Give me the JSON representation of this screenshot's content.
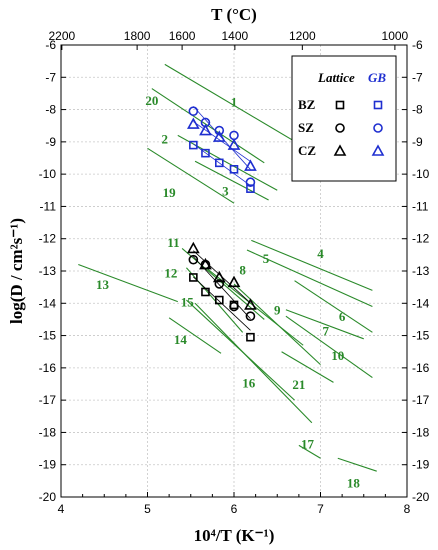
{
  "chart_data": {
    "type": "scatter",
    "xlabel": "10⁴/T (K⁻¹)",
    "ylabel": "log(D / cm²s⁻¹)",
    "top_axis_label": "T (°C)",
    "xlim": [
      4,
      8
    ],
    "ylim": [
      -20,
      -6
    ],
    "x_ticks": [
      "4",
      "5",
      "6",
      "7",
      "8"
    ],
    "y_ticks": [
      "-6",
      "-7",
      "-8",
      "-9",
      "-10",
      "-11",
      "-12",
      "-13",
      "-14",
      "-15",
      "-16",
      "-17",
      "-18",
      "-19",
      "-20"
    ],
    "top_ticks": [
      {
        "label": "2200",
        "x": 4.01
      },
      {
        "label": "1800",
        "x": 4.88
      },
      {
        "label": "1600",
        "x": 5.4
      },
      {
        "label": "1400",
        "x": 6.01
      },
      {
        "label": "1200",
        "x": 6.79
      },
      {
        "label": "1000",
        "x": 7.86
      }
    ],
    "grid": true,
    "legend": {
      "position": "top-right",
      "titles": [
        "Lattice",
        "GB"
      ],
      "rows": [
        {
          "label": "BZ",
          "marker": "square"
        },
        {
          "label": "SZ",
          "marker": "circle"
        },
        {
          "label": "CZ",
          "marker": "triangle"
        }
      ]
    },
    "colors": {
      "lattice": "#000000",
      "gb": "#1f2fd0",
      "literature": "#2a8a2a"
    },
    "series": [
      {
        "name": "BZ Lattice",
        "group": "lattice",
        "marker": "square",
        "x": [
          5.53,
          5.67,
          5.83,
          6.0,
          6.19
        ],
        "y": [
          -13.2,
          -13.65,
          -13.9,
          -14.05,
          -15.05
        ]
      },
      {
        "name": "SZ Lattice",
        "group": "lattice",
        "marker": "circle",
        "x": [
          5.53,
          5.67,
          5.83,
          6.0,
          6.19
        ],
        "y": [
          -12.65,
          -12.8,
          -13.4,
          -14.1,
          -14.4
        ]
      },
      {
        "name": "CZ Lattice",
        "group": "lattice",
        "marker": "triangle",
        "x": [
          5.53,
          5.67,
          5.83,
          6.0,
          6.19
        ],
        "y": [
          -12.3,
          -12.8,
          -13.2,
          -13.35,
          -14.05
        ]
      },
      {
        "name": "BZ GB",
        "group": "gb",
        "marker": "square",
        "x": [
          5.53,
          5.67,
          5.83,
          6.0,
          6.19
        ],
        "y": [
          -9.1,
          -9.35,
          -9.65,
          -9.85,
          -10.45
        ]
      },
      {
        "name": "SZ GB",
        "group": "gb",
        "marker": "circle",
        "x": [
          5.53,
          5.67,
          5.83,
          6.0,
          6.19
        ],
        "y": [
          -8.05,
          -8.4,
          -8.65,
          -8.8,
          -10.25
        ]
      },
      {
        "name": "CZ GB",
        "group": "gb",
        "marker": "triangle",
        "x": [
          5.53,
          5.67,
          5.83,
          6.0,
          6.19
        ],
        "y": [
          -8.45,
          -8.65,
          -8.85,
          -9.1,
          -9.75
        ]
      }
    ],
    "literature_lines": [
      {
        "label": "1",
        "x": [
          5.2,
          6.9
        ],
        "y": [
          -6.6,
          -9.3
        ]
      },
      {
        "label": "2",
        "x": [
          5.35,
          6.5
        ],
        "y": [
          -8.8,
          -10.5
        ]
      },
      {
        "label": "3",
        "x": [
          5.55,
          6.4
        ],
        "y": [
          -9.6,
          -10.8
        ]
      },
      {
        "label": "4",
        "x": [
          6.2,
          7.6
        ],
        "y": [
          -12.05,
          -13.6
        ]
      },
      {
        "label": "5",
        "x": [
          6.15,
          7.6
        ],
        "y": [
          -12.35,
          -14.1
        ]
      },
      {
        "label": "6",
        "x": [
          6.7,
          7.6
        ],
        "y": [
          -13.3,
          -14.9
        ]
      },
      {
        "label": "7",
        "x": [
          6.6,
          7.5
        ],
        "y": [
          -14.2,
          -15.1
        ]
      },
      {
        "label": "8",
        "x": [
          5.7,
          6.8
        ],
        "y": [
          -12.95,
          -15.3
        ]
      },
      {
        "label": "9",
        "x": [
          6.0,
          7.0
        ],
        "y": [
          -13.4,
          -15.9
        ]
      },
      {
        "label": "10",
        "x": [
          6.6,
          7.6
        ],
        "y": [
          -14.4,
          -16.3
        ]
      },
      {
        "label": "11",
        "x": [
          5.4,
          6.35
        ],
        "y": [
          -12.3,
          -14.5
        ]
      },
      {
        "label": "12",
        "x": [
          5.45,
          6.1
        ],
        "y": [
          -12.9,
          -14.9
        ]
      },
      {
        "label": "13",
        "x": [
          4.2,
          5.35
        ],
        "y": [
          -12.8,
          -13.95
        ]
      },
      {
        "label": "14",
        "x": [
          5.25,
          5.85
        ],
        "y": [
          -14.45,
          -15.55
        ]
      },
      {
        "label": "15",
        "x": [
          5.45,
          6.7
        ],
        "y": [
          -13.9,
          -17.0
        ]
      },
      {
        "label": "16",
        "x": [
          5.55,
          6.9
        ],
        "y": [
          -14.0,
          -17.7
        ]
      },
      {
        "label": "17",
        "x": [
          6.75,
          7.0
        ],
        "y": [
          -18.4,
          -18.8
        ]
      },
      {
        "label": "18",
        "x": [
          7.2,
          7.65
        ],
        "y": [
          -18.8,
          -19.2
        ]
      },
      {
        "label": "19",
        "x": [
          5.0,
          6.0
        ],
        "y": [
          -9.2,
          -10.9
        ]
      },
      {
        "label": "20",
        "x": [
          5.05,
          6.35
        ],
        "y": [
          -7.35,
          -9.65
        ]
      },
      {
        "label": "21",
        "x": [
          6.55,
          7.15
        ],
        "y": [
          -15.5,
          -16.45
        ]
      }
    ]
  }
}
